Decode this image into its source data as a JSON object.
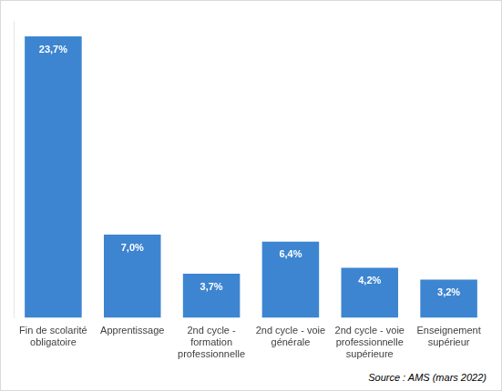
{
  "chart_data": {
    "type": "bar",
    "categories": [
      "Fin de scolarité obligatoire",
      "Apprentissage",
      "2nd cycle - formation professionnelle",
      "2nd cycle - voie générale",
      "2nd cycle - voie professionnelle supérieure",
      "Enseignement supérieur"
    ],
    "values": [
      23.7,
      7.0,
      3.7,
      6.4,
      4.2,
      3.2
    ],
    "value_labels": [
      "23,7%",
      "7,0%",
      "3,7%",
      "6,4%",
      "4,2%",
      "3,2%"
    ],
    "color": "#3d85d1",
    "ylim": [
      0,
      25
    ],
    "yticks": [],
    "grid": false,
    "data_labels": true,
    "tick_labels": "x",
    "annotations": [
      "Source : AMS (mars 2022)"
    ]
  }
}
